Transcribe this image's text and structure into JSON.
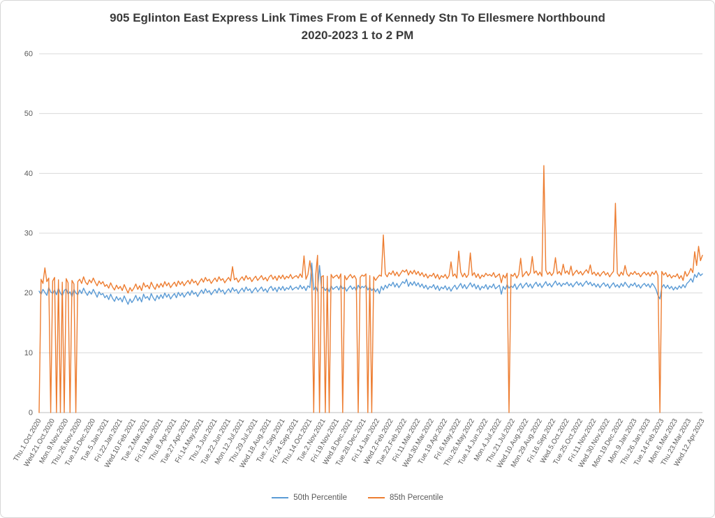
{
  "chart_data": {
    "type": "line",
    "title": "905 Eglinton East Express Link Times From E of Kennedy Stn To Ellesmere Northbound",
    "subtitle": "2020-2023 1 to 2 PM",
    "xlabel": "",
    "ylabel": "",
    "ylim": [
      0,
      60
    ],
    "y_ticks": [
      0,
      10,
      20,
      30,
      40,
      50,
      60
    ],
    "grid": true,
    "legend_position": "bottom",
    "grid_color": "#D9D9D9",
    "axis_color": "#BFBFBF",
    "text_color": "#595959",
    "label_every": 7,
    "x_tick_labels": [
      "Thu.1.Oct.2020",
      "Wed.21.Oct.2020",
      "Mon.9.Nov.2020",
      "Thu.26.Nov.2020",
      "Tue.15.Dec.2020",
      "Tue.5.Jan.2021",
      "Fri.22.Jan.2021",
      "Wed.10.Feb.2021",
      "Tue.2.Mar.2021",
      "Fri.19.Mar.2021",
      "Thu.8.Apr.2021",
      "Tue.27.Apr.2021",
      "Fri.14.May.2021",
      "Thu.3.Jun.2021",
      "Tue.22.Jun.2021",
      "Mon.12.Jul.2021",
      "Thu.29.Jul.2021",
      "Wed.18.Aug.2021",
      "Tue.7.Sep.2021",
      "Fri.24.Sep.2021",
      "Thu.14.Oct.2021",
      "Tue.2.Nov.2021",
      "Fri.19.Nov.2021",
      "Wed.8.Dec.2021",
      "Tue.28.Dec.2021",
      "Fri.14.Jan.2022",
      "Wed.2.Feb.2022",
      "Tue.22.Feb.2022",
      "Fri.11.Mar.2022",
      "Wed.30.Mar.2022",
      "Tue.19.Apr.2022",
      "Fri.6.May.2022",
      "Thu.26.May.2022",
      "Tue.14.Jun.2022",
      "Mon.4.Jul.2022",
      "Thu.21.Jul.2022",
      "Wed.10.Aug.2022",
      "Mon.29.Aug.2022",
      "Fri.16.Sep.2022",
      "Wed.5.Oct.2022",
      "Tue.25.Oct.2022",
      "Fri.11.Nov.2022",
      "Wed.30.Nov.2022",
      "Mon.19.Dec.2022",
      "Mon.9.Jan.2023",
      "Thu.26.Jan.2023",
      "Tue.14.Feb.2023",
      "Mon.6.Mar.2023",
      "Thu.23.Mar.2023",
      "Wed.12.Apr.2023"
    ],
    "series": [
      {
        "name": "50th Percentile",
        "color": "#5B9BD5",
        "values": [
          20.3,
          19.8,
          20.6,
          20.1,
          19.6,
          20.9,
          20.2,
          19.9,
          20.5,
          19.7,
          20.8,
          20.0,
          19.5,
          20.4,
          20.7,
          19.8,
          20.2,
          19.4,
          20.6,
          20.0,
          19.7,
          20.5,
          19.9,
          20.8,
          20.1,
          19.6,
          20.3,
          19.8,
          20.6,
          20.0,
          19.3,
          20.2,
          19.7,
          19.9,
          19.2,
          19.6,
          18.9,
          19.8,
          19.1,
          18.6,
          19.4,
          18.8,
          19.2,
          18.5,
          19.5,
          18.8,
          18.1,
          19.0,
          18.4,
          18.9,
          19.6,
          18.7,
          19.3,
          18.5,
          19.8,
          19.1,
          19.4,
          18.8,
          19.9,
          19.2,
          18.7,
          19.6,
          19.0,
          19.7,
          19.1,
          20.0,
          19.3,
          19.8,
          19.0,
          19.5,
          19.9,
          19.2,
          20.1,
          19.5,
          20.0,
          19.3,
          19.8,
          20.2,
          19.6,
          20.4,
          19.8,
          20.1,
          19.4,
          20.0,
          20.5,
          19.9,
          20.7,
          20.1,
          20.4,
          19.7,
          20.2,
          20.6,
          20.0,
          20.8,
          20.2,
          20.5,
          19.8,
          20.3,
          20.7,
          20.1,
          20.9,
          20.3,
          20.6,
          19.9,
          20.4,
          20.8,
          20.2,
          21.0,
          20.4,
          20.7,
          20.0,
          20.5,
          20.9,
          20.2,
          20.6,
          21.0,
          20.3,
          20.7,
          20.1,
          20.8,
          21.1,
          20.4,
          20.9,
          20.2,
          21.0,
          20.5,
          21.1,
          20.4,
          20.9,
          20.6,
          21.2,
          20.5,
          20.8,
          21.0,
          20.6,
          21.3,
          20.7,
          21.1,
          20.4,
          21.2,
          20.9,
          25.0,
          20.5,
          21.1,
          20.3,
          24.6,
          20.8,
          21.0,
          20.4,
          20.9,
          20.2,
          21.2,
          20.6,
          20.9,
          21.1,
          20.5,
          21.3,
          20.7,
          21.0,
          20.3,
          20.8,
          21.2,
          20.6,
          21.0,
          20.4,
          21.3,
          20.7,
          21.1,
          20.9,
          21.3,
          20.5,
          21.0,
          20.4,
          20.8,
          20.2,
          20.7,
          19.9,
          21.1,
          20.5,
          21.3,
          20.8,
          21.5,
          21.2,
          21.8,
          21.0,
          21.6,
          20.9,
          21.4,
          21.9,
          21.6,
          22.3,
          21.1,
          21.8,
          21.3,
          21.9,
          21.2,
          21.7,
          21.0,
          21.5,
          20.8,
          21.3,
          20.6,
          21.1,
          20.9,
          21.4,
          20.6,
          21.2,
          20.4,
          21.0,
          20.7,
          21.2,
          20.5,
          21.0,
          20.3,
          20.9,
          21.3,
          20.6,
          21.1,
          21.6,
          20.8,
          21.4,
          20.7,
          21.2,
          21.7,
          21.0,
          21.5,
          20.7,
          21.3,
          20.5,
          21.1,
          20.8,
          21.4,
          20.6,
          21.2,
          20.9,
          21.5,
          20.7,
          21.0,
          21.3,
          19.8,
          21.1,
          20.6,
          21.4,
          20.8,
          21.2,
          20.9,
          21.5,
          20.6,
          21.2,
          21.6,
          20.8,
          21.3,
          21.7,
          21.0,
          21.5,
          20.8,
          21.4,
          21.8,
          21.1,
          21.6,
          20.9,
          21.4,
          21.9,
          21.2,
          21.6,
          21.0,
          21.5,
          22.0,
          21.3,
          21.7,
          21.1,
          21.6,
          21.4,
          21.8,
          21.2,
          21.6,
          21.0,
          21.5,
          21.9,
          21.3,
          21.7,
          21.1,
          21.6,
          22.0,
          21.4,
          21.8,
          21.2,
          21.6,
          21.0,
          21.5,
          20.9,
          21.4,
          21.7,
          21.1,
          21.5,
          20.8,
          21.3,
          21.7,
          21.0,
          21.4,
          20.9,
          21.6,
          21.1,
          21.8,
          21.3,
          20.9,
          21.5,
          21.2,
          21.7,
          21.0,
          21.4,
          20.8,
          21.3,
          21.6,
          21.1,
          21.5,
          20.9,
          21.6,
          21.2,
          20.6,
          19.6,
          19.0,
          20.9,
          21.4,
          20.8,
          21.3,
          20.7,
          21.1,
          20.5,
          21.0,
          20.6,
          21.2,
          20.8,
          21.4,
          20.9,
          21.6,
          21.9,
          22.4,
          21.8,
          23.1,
          22.6,
          23.4,
          22.9,
          23.2
        ]
      },
      {
        "name": "85th Percentile",
        "color": "#ED7D31",
        "values": [
          0,
          22.3,
          21.6,
          24.2,
          21.9,
          22.5,
          0,
          22.0,
          22.6,
          0,
          22.2,
          0,
          21.8,
          0,
          22.4,
          21.7,
          0,
          22.1,
          21.5,
          0,
          21.9,
          22.3,
          21.6,
          22.7,
          21.8,
          21.4,
          22.2,
          21.7,
          22.5,
          21.8,
          21.2,
          22.0,
          21.5,
          21.9,
          21.1,
          21.4,
          20.8,
          21.7,
          21.0,
          20.5,
          21.3,
          20.7,
          21.1,
          20.4,
          21.4,
          20.7,
          20.0,
          20.9,
          20.3,
          20.8,
          21.5,
          20.6,
          21.2,
          20.4,
          21.7,
          21.0,
          21.3,
          20.7,
          21.8,
          21.1,
          20.6,
          21.5,
          20.9,
          21.6,
          21.0,
          21.9,
          21.2,
          21.7,
          20.9,
          21.4,
          21.8,
          21.1,
          22.0,
          21.4,
          21.9,
          21.2,
          21.7,
          22.1,
          21.5,
          22.3,
          21.7,
          22.0,
          21.3,
          21.9,
          22.4,
          21.8,
          22.6,
          22.0,
          22.3,
          21.6,
          22.1,
          22.5,
          21.9,
          22.7,
          22.1,
          22.4,
          21.7,
          22.2,
          22.6,
          22.0,
          24.4,
          22.2,
          22.5,
          21.8,
          22.3,
          22.7,
          22.1,
          22.9,
          22.3,
          22.6,
          21.9,
          22.4,
          22.8,
          22.1,
          22.5,
          22.9,
          22.2,
          22.6,
          22.0,
          22.7,
          23.0,
          22.3,
          22.8,
          22.1,
          22.9,
          22.4,
          23.0,
          22.3,
          22.8,
          22.5,
          23.1,
          22.4,
          22.7,
          22.9,
          22.5,
          23.2,
          22.6,
          26.2,
          22.3,
          23.1,
          25.4,
          22.8,
          0,
          23.0,
          26.3,
          0,
          22.7,
          22.9,
          0,
          22.8,
          0,
          23.1,
          22.5,
          22.8,
          23.0,
          22.4,
          23.2,
          0,
          22.9,
          22.2,
          22.7,
          23.1,
          22.5,
          22.9,
          22.3,
          0,
          22.6,
          23.0,
          22.8,
          23.2,
          0,
          22.9,
          0,
          22.7,
          22.1,
          22.6,
          23.0,
          22.8,
          29.7,
          23.2,
          22.7,
          23.4,
          23.1,
          23.7,
          22.9,
          23.5,
          22.8,
          23.3,
          23.8,
          23.5,
          23.9,
          23.0,
          23.7,
          23.2,
          23.8,
          23.1,
          23.6,
          22.9,
          23.4,
          22.7,
          23.2,
          22.5,
          23.0,
          22.8,
          23.3,
          22.5,
          23.1,
          22.3,
          22.9,
          22.6,
          23.1,
          22.4,
          22.9,
          25.2,
          22.8,
          23.2,
          22.5,
          27.0,
          23.5,
          22.7,
          23.3,
          22.6,
          23.1,
          26.7,
          22.9,
          23.4,
          22.6,
          23.2,
          22.4,
          23.0,
          22.7,
          23.3,
          22.9,
          23.1,
          22.8,
          23.4,
          22.6,
          22.9,
          23.2,
          21.7,
          23.0,
          22.5,
          23.3,
          0,
          23.1,
          22.8,
          23.3,
          22.5,
          23.1,
          25.8,
          22.7,
          23.2,
          23.6,
          22.9,
          23.4,
          26.1,
          23.3,
          23.7,
          23.0,
          23.5,
          22.8,
          41.3,
          23.8,
          23.1,
          23.5,
          22.9,
          23.4,
          25.9,
          23.2,
          23.6,
          23.0,
          24.8,
          23.3,
          23.7,
          23.1,
          24.5,
          22.9,
          23.4,
          23.8,
          23.2,
          23.6,
          23.0,
          23.5,
          23.9,
          23.3,
          24.7,
          23.1,
          23.5,
          22.9,
          23.4,
          22.8,
          23.3,
          23.6,
          23.0,
          23.4,
          22.7,
          23.2,
          23.6,
          35.0,
          23.3,
          22.8,
          23.5,
          23.0,
          24.6,
          23.2,
          22.8,
          23.4,
          23.1,
          23.6,
          23.1,
          23.3,
          22.7,
          23.2,
          23.5,
          23.0,
          23.4,
          22.8,
          23.5,
          23.1,
          23.7,
          22.9,
          0,
          23.6,
          23.0,
          23.4,
          22.7,
          23.1,
          22.5,
          22.9,
          22.7,
          23.2,
          22.4,
          22.9,
          22.1,
          23.6,
          22.8,
          23.3,
          24.1,
          23.4,
          26.9,
          24.6,
          27.8,
          25.4,
          26.3
        ]
      }
    ]
  }
}
